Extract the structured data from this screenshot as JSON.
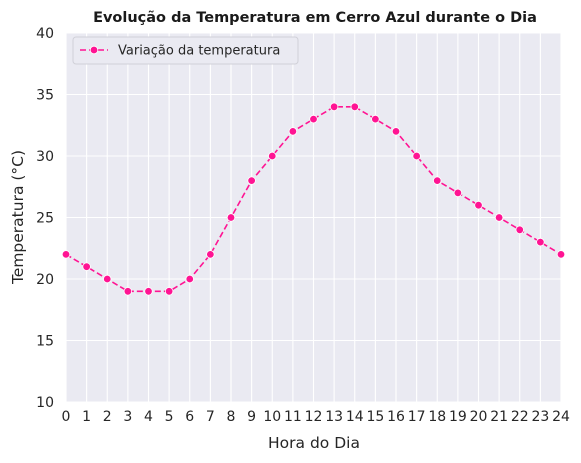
{
  "chart_data": {
    "type": "line",
    "title": "Evolução da Temperatura em Cerro Azul durante o Dia",
    "xlabel": "Hora do Dia",
    "ylabel": "Temperatura (°C)",
    "xlim": [
      0,
      24
    ],
    "ylim": [
      10,
      40
    ],
    "x_ticks": [
      0,
      1,
      2,
      3,
      4,
      5,
      6,
      7,
      8,
      9,
      10,
      11,
      12,
      13,
      14,
      15,
      16,
      17,
      18,
      19,
      20,
      21,
      22,
      23,
      24
    ],
    "y_ticks": [
      10,
      15,
      20,
      25,
      30,
      35,
      40
    ],
    "grid": true,
    "legend_position": "top-left",
    "background_color": "#eaeaf2",
    "grid_color": "#ffffff",
    "series": [
      {
        "name": "Variação da temperatura",
        "color": "#ff1493",
        "line_style": "dashed",
        "marker": "circle",
        "x": [
          0,
          1,
          2,
          3,
          4,
          5,
          6,
          7,
          8,
          9,
          10,
          11,
          12,
          13,
          14,
          15,
          16,
          17,
          18,
          19,
          20,
          21,
          22,
          23,
          24
        ],
        "values": [
          22,
          21,
          20,
          19,
          19,
          19,
          20,
          22,
          25,
          28,
          30,
          32,
          33,
          34,
          34,
          33,
          32,
          30,
          28,
          27,
          26,
          25,
          24,
          23,
          22
        ]
      }
    ]
  }
}
